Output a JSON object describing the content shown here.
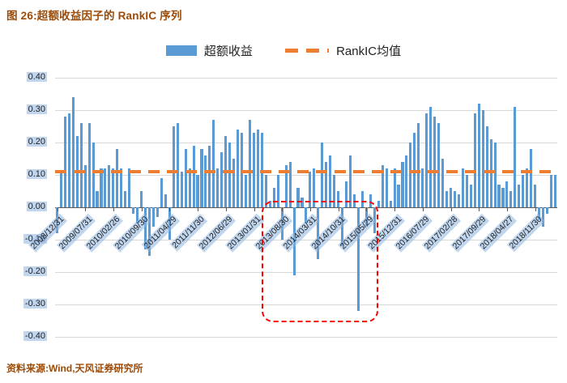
{
  "title": "图 26:超额收益因子的 RankIC 序列",
  "source": "资料来源:Wind,天风证券研究所",
  "legend": {
    "items": [
      {
        "label": "超额收益",
        "marker": "bar-swatch"
      },
      {
        "label": "RankIC均值",
        "marker": "dashed-line-swatch"
      }
    ]
  },
  "colors": {
    "bar": "#5B9BD5",
    "mean_line": "#ED7D31",
    "title_text": "#9C4A06",
    "annotation": "#FF0000",
    "gridline": "#D9D9D9",
    "tick_highlight": "#8DB4E2"
  },
  "chart_data": {
    "type": "bar",
    "title": "超额收益因子的 RankIC 序列",
    "xlabel": "",
    "ylabel": "",
    "ylim": [
      -0.4,
      0.4
    ],
    "y_tick_step": 0.1,
    "grid": true,
    "legend_position": "top",
    "legend_entries": [
      "超额收益",
      "RankIC均值"
    ],
    "mean_line": 0.11,
    "y_tick_labels": [
      "0.40",
      "0.30",
      "0.20",
      "0.10",
      "0.00",
      "-0.10",
      "-0.20",
      "-0.30",
      "-0.40"
    ],
    "x_tick_interval": 7,
    "x_tick_labels": [
      "2008/12/31",
      "2009/07/31",
      "2010/02/26",
      "2010/09/30",
      "2011/04/29",
      "2011/11/30",
      "2012/06/29",
      "2013/01/31",
      "2013/08/30",
      "2014/03/31",
      "2014/10/31",
      "2015/05/29",
      "2015/12/31",
      "2016/07/29",
      "2017/02/28",
      "2017/09/29",
      "2018/04/27",
      "2018/11/30"
    ],
    "values": [
      -0.08,
      0.11,
      0.28,
      0.29,
      0.34,
      0.22,
      0.26,
      0.13,
      0.26,
      0.2,
      0.05,
      0.12,
      0.12,
      0.13,
      0.12,
      0.18,
      0.12,
      0.05,
      0.12,
      -0.02,
      -0.05,
      0.05,
      -0.13,
      -0.15,
      -0.06,
      -0.03,
      0.09,
      0.04,
      -0.1,
      0.25,
      0.26,
      0.11,
      0.18,
      0.12,
      0.19,
      0.1,
      0.18,
      0.16,
      0.19,
      0.27,
      0.12,
      0.17,
      0.22,
      0.2,
      0.15,
      0.24,
      0.23,
      0.1,
      0.27,
      0.23,
      0.24,
      0.23,
      0.1,
      0.02,
      0.06,
      0.1,
      -0.1,
      0.13,
      0.14,
      -0.21,
      0.06,
      0.03,
      -0.05,
      0.11,
      0.12,
      -0.16,
      0.2,
      0.14,
      0.16,
      0.1,
      0.05,
      -0.12,
      0.08,
      0.16,
      0.04,
      -0.32,
      0.05,
      -0.06,
      0.04,
      -0.08,
      0.02,
      0.13,
      0.12,
      0.02,
      0.12,
      0.07,
      0.14,
      0.16,
      0.2,
      0.23,
      0.26,
      0.12,
      0.29,
      0.31,
      0.28,
      0.26,
      0.15,
      0.05,
      0.06,
      0.05,
      0.04,
      0.12,
      0.1,
      0.07,
      0.29,
      0.32,
      0.3,
      0.25,
      0.21,
      0.2,
      0.07,
      0.06,
      0.08,
      0.05,
      0.31,
      0.07,
      0.1,
      0.12,
      0.18,
      0.07,
      -0.04,
      -0.06,
      -0.02,
      0.1,
      0.1
    ],
    "annotation": {
      "type": "dashed-rect",
      "color": "#FF0000",
      "x_start_index": 52,
      "x_end_index": 78,
      "y_top": 0.02,
      "y_bottom": -0.345
    }
  }
}
